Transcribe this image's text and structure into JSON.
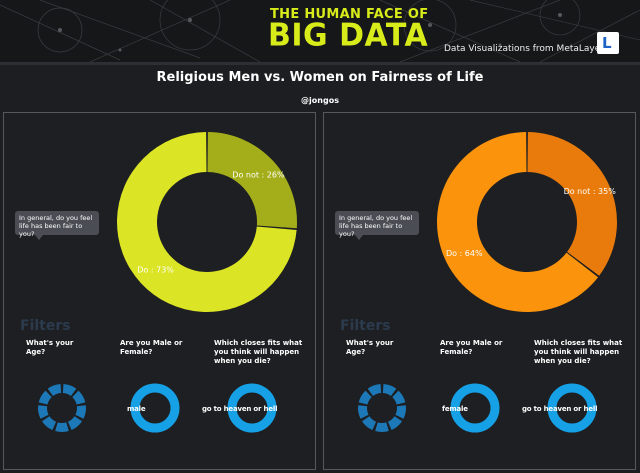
{
  "header": {
    "logo_line1": "THE HUMAN FACE OF",
    "logo_line2": "BIG DATA",
    "subtitle": "Data Visualizations from MetaLayer",
    "metalayer_logo": "L",
    "accent_color": "#d8ec1a"
  },
  "page": {
    "title": "Religious Men vs. Women on Fairness of Life",
    "author": "@jongos"
  },
  "panels": [
    {
      "question": "In general, do you feel life has been fair to you?",
      "chart_data": {
        "type": "pie",
        "variant": "donut",
        "slices": [
          {
            "label": "Do not : 26%",
            "name": "Do not",
            "value": 26,
            "color": "#a4ae1b"
          },
          {
            "label": "Do : 73%",
            "name": "Do",
            "value": 73,
            "color": "#dbe425"
          }
        ]
      },
      "filters": {
        "title": "Filters",
        "age": {
          "question": "What's your Age?",
          "color": "#1c78b6",
          "segments": 9
        },
        "gender": {
          "question": "Are you Male or Female?",
          "value": "male",
          "color": "#16a1e6"
        },
        "afterlife": {
          "question": "Which closes fits what you think will happen when you die?",
          "value": "go to heaven or hell",
          "color": "#16a1e6"
        }
      }
    },
    {
      "question": "In general, do you feel life has been fair to you?",
      "chart_data": {
        "type": "pie",
        "variant": "donut",
        "slices": [
          {
            "label": "Do not : 35%",
            "name": "Do not",
            "value": 35,
            "color": "#e87b0c"
          },
          {
            "label": "Do : 64%",
            "name": "Do",
            "value": 64,
            "color": "#fb930d"
          }
        ]
      },
      "filters": {
        "title": "Filters",
        "age": {
          "question": "What's your Age?",
          "color": "#1c78b6",
          "segments": 9
        },
        "gender": {
          "question": "Are you Male or Female?",
          "value": "female",
          "color": "#16a1e6"
        },
        "afterlife": {
          "question": "Which closes fits what you think will happen when you die?",
          "value": "go to heaven or hell",
          "color": "#16a1e6"
        }
      }
    }
  ]
}
